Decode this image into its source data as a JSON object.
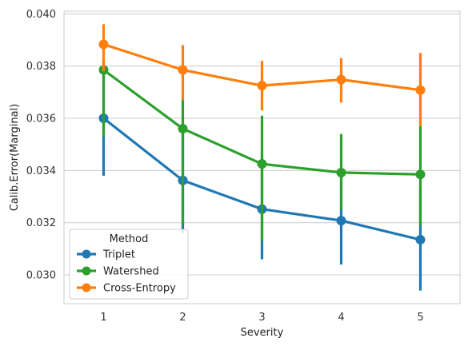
{
  "chart_data": {
    "type": "line",
    "xlabel": "Severity",
    "ylabel": "Calib.Error(Marginal)",
    "categories": [
      "1",
      "2",
      "3",
      "4",
      "5"
    ],
    "ylim": [
      0.0289,
      0.0401
    ],
    "yticks": [
      "0.030",
      "0.032",
      "0.034",
      "0.036",
      "0.038",
      "0.040"
    ],
    "grid": true,
    "legend": {
      "title": "Method",
      "placement": "lower-left"
    },
    "series": [
      {
        "name": "Triplet",
        "color": "#1f77b4",
        "values": [
          0.036,
          0.03362,
          0.03252,
          0.03208,
          0.03135
        ],
        "err_low": [
          0.0338,
          0.0316,
          0.0306,
          0.0304,
          0.0294
        ],
        "err_high": [
          0.0382,
          0.0357,
          0.0346,
          0.0339,
          0.0333
        ]
      },
      {
        "name": "Watershed",
        "color": "#2ca02c",
        "values": [
          0.03785,
          0.0356,
          0.03425,
          0.03392,
          0.03385
        ],
        "err_low": [
          0.0353,
          0.0319,
          0.0313,
          0.0325,
          0.0319
        ],
        "err_high": [
          0.0382,
          0.0367,
          0.0361,
          0.0354,
          0.0357
        ]
      },
      {
        "name": "Cross-Entropy",
        "color": "#ff7f0e",
        "values": [
          0.03883,
          0.03785,
          0.03725,
          0.03748,
          0.03708
        ],
        "err_low": [
          0.0378,
          0.0367,
          0.0363,
          0.0366,
          0.0357
        ],
        "err_high": [
          0.0396,
          0.0388,
          0.0382,
          0.0383,
          0.0385
        ]
      }
    ]
  }
}
